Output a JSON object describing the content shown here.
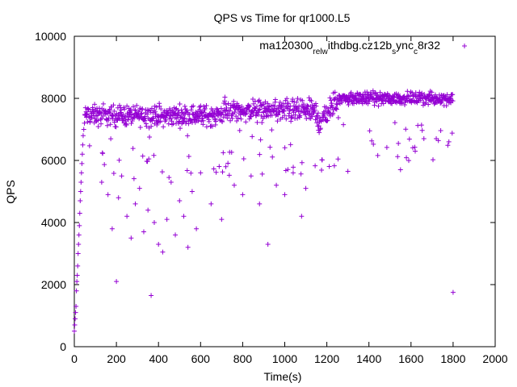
{
  "chart_data": {
    "type": "scatter",
    "title": "QPS vs Time for qr1000.L5",
    "xlabel": "Time(s)",
    "ylabel": "QPS",
    "xlim": [
      0,
      2000
    ],
    "ylim": [
      0,
      10000
    ],
    "xticks": [
      0,
      200,
      400,
      600,
      800,
      1000,
      1200,
      1400,
      1600,
      1800,
      2000
    ],
    "yticks": [
      0,
      2000,
      4000,
      6000,
      8000,
      10000
    ],
    "grid": false,
    "legend_position": "top-right",
    "series": [
      {
        "name": "ma120300_rel_withdbg.cz12b_sync_c8r32",
        "legend_parts": [
          {
            "text": "ma120300",
            "shift": "base"
          },
          {
            "text": "rel",
            "shift": "sub"
          },
          {
            "text": "w",
            "shift": "sub"
          },
          {
            "text": "ithdbg.cz12b",
            "shift": "base"
          },
          {
            "text": "s",
            "shift": "sub"
          },
          {
            "text": "ync",
            "shift": "base"
          },
          {
            "text": "c",
            "shift": "sub"
          },
          {
            "text": "8r32",
            "shift": "base"
          }
        ],
        "color": "#9400d3",
        "marker": "+",
        "points": [
          [
            0,
            500
          ],
          [
            2,
            700
          ],
          [
            4,
            900
          ],
          [
            6,
            1100
          ],
          [
            8,
            1300
          ],
          [
            10,
            1800
          ],
          [
            12,
            2100
          ],
          [
            14,
            2300
          ],
          [
            16,
            2600
          ],
          [
            18,
            3000
          ],
          [
            20,
            3300
          ],
          [
            22,
            3600
          ],
          [
            24,
            3900
          ],
          [
            26,
            4300
          ],
          [
            28,
            4700
          ],
          [
            30,
            5000
          ],
          [
            32,
            5300
          ],
          [
            34,
            5600
          ],
          [
            36,
            5900
          ],
          [
            38,
            6200
          ],
          [
            40,
            6500
          ],
          [
            42,
            6800
          ],
          [
            45,
            7000
          ],
          [
            48,
            7200
          ],
          [
            200,
            2100
          ],
          [
            365,
            1650
          ],
          [
            1800,
            1750
          ],
          [
            130,
            5300
          ],
          [
            160,
            4900
          ],
          [
            180,
            3800
          ],
          [
            210,
            4800
          ],
          [
            225,
            5500
          ],
          [
            250,
            4200
          ],
          [
            270,
            3500
          ],
          [
            290,
            4600
          ],
          [
            310,
            5100
          ],
          [
            330,
            3700
          ],
          [
            350,
            4400
          ],
          [
            380,
            4000
          ],
          [
            400,
            3300
          ],
          [
            420,
            3050
          ],
          [
            440,
            4100
          ],
          [
            460,
            5300
          ],
          [
            480,
            3600
          ],
          [
            500,
            4700
          ],
          [
            520,
            4200
          ],
          [
            540,
            3200
          ],
          [
            560,
            5000
          ],
          [
            580,
            3800
          ],
          [
            600,
            5600
          ],
          [
            650,
            4600
          ],
          [
            700,
            4100
          ],
          [
            720,
            5800
          ],
          [
            760,
            5200
          ],
          [
            800,
            4900
          ],
          [
            840,
            5500
          ],
          [
            880,
            4600
          ],
          [
            920,
            3300
          ],
          [
            960,
            5200
          ],
          [
            1000,
            4900
          ],
          [
            1040,
            5600
          ],
          [
            1080,
            4200
          ],
          [
            1100,
            5100
          ],
          [
            1300,
            5650
          ],
          [
            1550,
            5700
          ],
          [
            1620,
            6300
          ],
          [
            1540,
            6550
          ],
          [
            1720,
            6700
          ],
          [
            1780,
            6600
          ]
        ]
      }
    ]
  }
}
